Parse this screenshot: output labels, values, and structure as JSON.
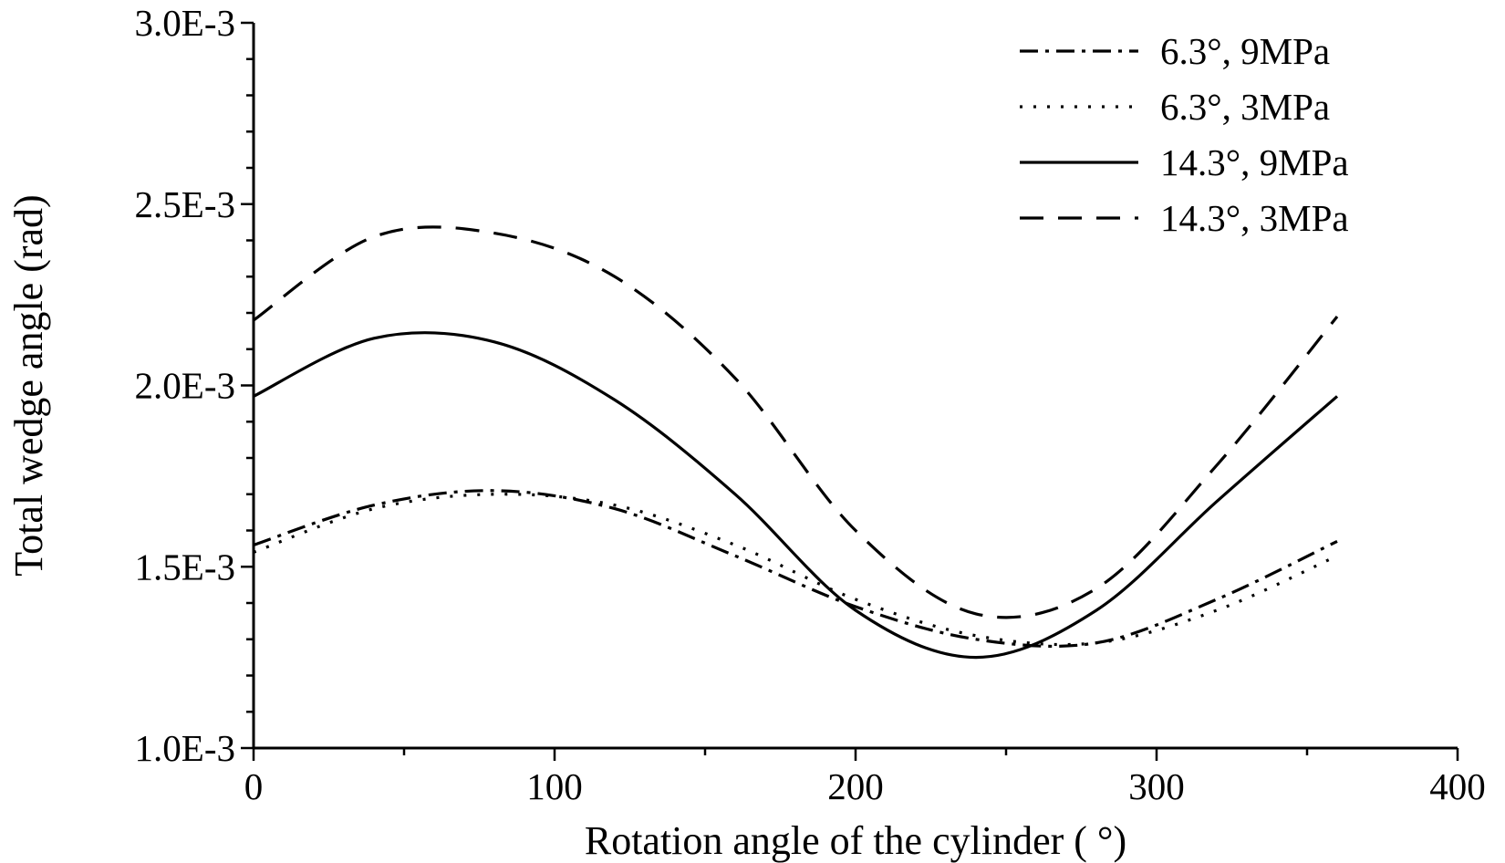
{
  "chart_data": {
    "type": "line",
    "title": "",
    "xlabel": "Rotation angle of the cylinder ( °)",
    "ylabel": "Total wedge angle (rad)",
    "xlim": [
      0,
      400
    ],
    "ylim": [
      0.001,
      0.003
    ],
    "x_ticks": [
      0,
      100,
      200,
      300,
      400
    ],
    "x_tick_labels": [
      "0",
      "100",
      "200",
      "300",
      "400"
    ],
    "y_ticks": [
      0.001,
      0.0015,
      0.002,
      0.0025,
      0.003
    ],
    "y_tick_labels": [
      "1.0E-3",
      "1.5E-3",
      "2.0E-3",
      "2.5E-3",
      "3.0E-3"
    ],
    "grid": false,
    "legend_position": "top-right",
    "series": [
      {
        "name": "6.3°, 9MPa",
        "line_style": "dash-dot",
        "color": "#000000",
        "x": [
          0,
          40,
          80,
          120,
          160,
          200,
          240,
          280,
          320,
          360
        ],
        "y": [
          0.00156,
          0.00167,
          0.00171,
          0.00166,
          0.00153,
          0.00139,
          0.0013,
          0.00129,
          0.00141,
          0.00157
        ]
      },
      {
        "name": "6.3°, 3MPa",
        "line_style": "dotted",
        "color": "#000000",
        "x": [
          0,
          40,
          80,
          120,
          160,
          200,
          240,
          280,
          320,
          360
        ],
        "y": [
          0.00154,
          0.00166,
          0.0017,
          0.00167,
          0.00156,
          0.00141,
          0.00131,
          0.00129,
          0.00138,
          0.00153
        ]
      },
      {
        "name": "14.3°, 9MPa",
        "line_style": "solid",
        "color": "#000000",
        "x": [
          0,
          40,
          80,
          120,
          160,
          200,
          240,
          280,
          320,
          360
        ],
        "y": [
          0.00197,
          0.00213,
          0.00212,
          0.00196,
          0.0017,
          0.00138,
          0.00125,
          0.00138,
          0.00168,
          0.00197
        ]
      },
      {
        "name": "14.3°, 3MPa",
        "line_style": "dashed",
        "color": "#000000",
        "x": [
          0,
          40,
          80,
          120,
          160,
          200,
          240,
          280,
          320,
          360
        ],
        "y": [
          0.00218,
          0.00241,
          0.00242,
          0.0023,
          0.00202,
          0.0016,
          0.00137,
          0.00144,
          0.00178,
          0.00219
        ]
      }
    ]
  }
}
